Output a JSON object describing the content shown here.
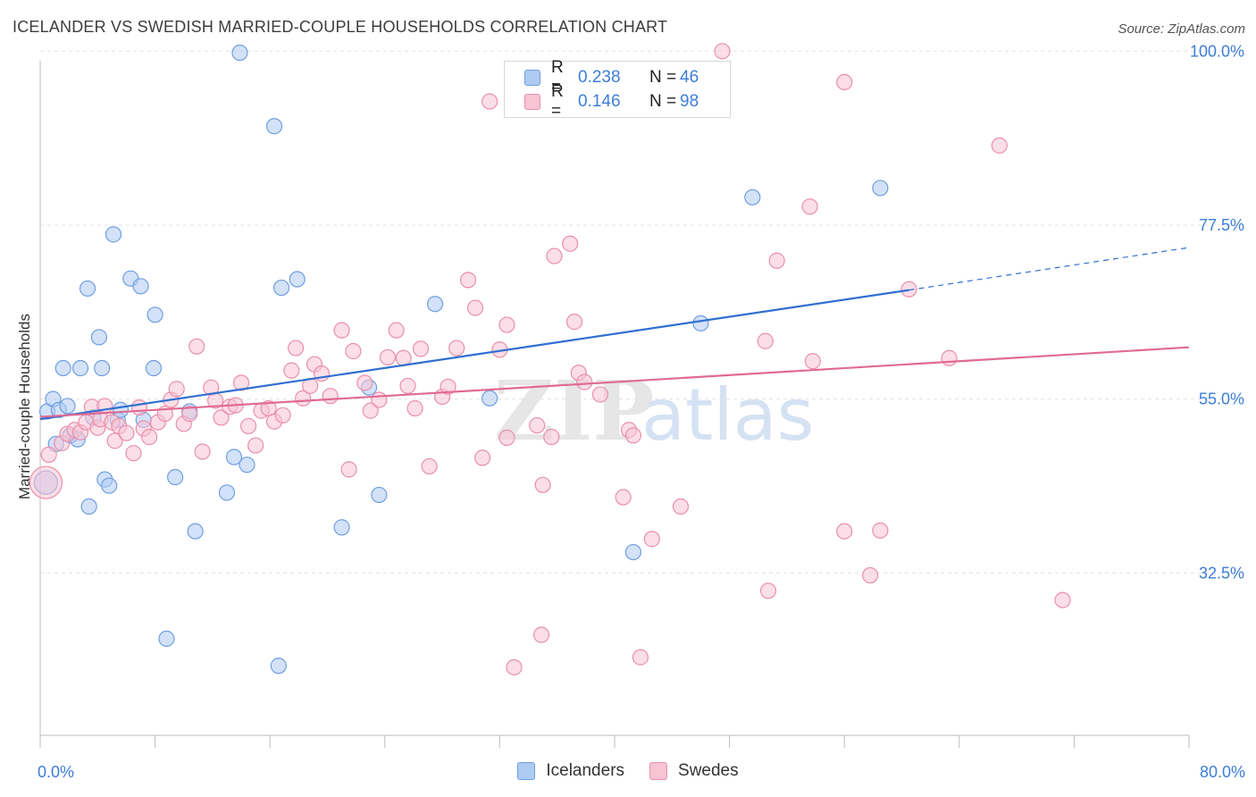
{
  "header": {
    "title": "ICELANDER VS SWEDISH MARRIED-COUPLE HOUSEHOLDS CORRELATION CHART",
    "source": "Source: ZipAtlas.com"
  },
  "watermark": {
    "zip": "ZIP",
    "atlas": "atlas"
  },
  "legend": {
    "r_label": "R =",
    "n_label": "N =",
    "rows": [
      {
        "r": "0.238",
        "n": "46",
        "fill": "#aecbf2",
        "stroke": "#6f9fe0"
      },
      {
        "r": "0.146",
        "n": "98",
        "fill": "#f8c3d3",
        "stroke": "#ea8fab"
      }
    ]
  },
  "bottom_legend": {
    "items": [
      {
        "label": "Icelanders",
        "fill": "#aecbf2",
        "stroke": "#6f9fe0"
      },
      {
        "label": "Swedes",
        "fill": "#f8c3d3",
        "stroke": "#ea8fab"
      }
    ]
  },
  "colors": {
    "icelanders_line": "#2f6fd1",
    "swedes_line": "#e06a93",
    "tick_label": "#3d7dd8",
    "grid": "#e3e3e3"
  },
  "chart_data": {
    "type": "scatter",
    "title": "ICELANDER VS SWEDISH MARRIED-COUPLE HOUSEHOLDS CORRELATION CHART",
    "xlabel": "",
    "ylabel": "Married-couple Households",
    "xlim": [
      0,
      80
    ],
    "ylim": [
      11.5,
      102
    ],
    "x_tick_labels": [
      {
        "value": 0,
        "label": "0.0%"
      },
      {
        "value": 80,
        "label": "80.0%"
      }
    ],
    "y_tick_labels": [
      {
        "value": 100,
        "label": "100.0%"
      },
      {
        "value": 77.5,
        "label": "77.5%"
      },
      {
        "value": 55,
        "label": "55.0%"
      },
      {
        "value": 32.5,
        "label": "32.5%"
      }
    ],
    "grid": true,
    "legend_position": "top-center",
    "series": [
      {
        "name": "Icelanders",
        "r": 0.238,
        "n": 46,
        "trend": {
          "x0": 0,
          "y0": 52.4,
          "x1": 60.5,
          "y1": 69.1,
          "dash_to_x": 80,
          "dash_to_y": 74.6
        },
        "points": [
          [
            0.4,
            44.2
          ],
          [
            0.5,
            53.4
          ],
          [
            0.9,
            55.0
          ],
          [
            1.3,
            53.6
          ],
          [
            1.1,
            49.2
          ],
          [
            1.6,
            59.0
          ],
          [
            1.9,
            54.1
          ],
          [
            2.1,
            50.3
          ],
          [
            2.6,
            49.8
          ],
          [
            2.8,
            59.0
          ],
          [
            3.3,
            69.3
          ],
          [
            3.4,
            41.1
          ],
          [
            3.7,
            52.6
          ],
          [
            4.1,
            63.0
          ],
          [
            4.3,
            59.0
          ],
          [
            4.5,
            44.6
          ],
          [
            4.8,
            43.8
          ],
          [
            5.1,
            76.3
          ],
          [
            5.4,
            52.3
          ],
          [
            5.6,
            53.6
          ],
          [
            6.3,
            70.6
          ],
          [
            7.0,
            69.6
          ],
          [
            7.2,
            52.3
          ],
          [
            7.9,
            59.0
          ],
          [
            8.0,
            65.9
          ],
          [
            8.8,
            24.0
          ],
          [
            9.4,
            44.9
          ],
          [
            10.4,
            53.4
          ],
          [
            10.8,
            37.9
          ],
          [
            13.0,
            42.9
          ],
          [
            13.5,
            47.5
          ],
          [
            13.9,
            99.8
          ],
          [
            14.4,
            46.5
          ],
          [
            16.3,
            90.3
          ],
          [
            16.6,
            20.5
          ],
          [
            16.8,
            69.4
          ],
          [
            17.9,
            70.5
          ],
          [
            21.0,
            38.4
          ],
          [
            22.9,
            56.5
          ],
          [
            23.6,
            42.6
          ],
          [
            27.5,
            67.3
          ],
          [
            31.3,
            55.1
          ],
          [
            41.3,
            35.2
          ],
          [
            46.0,
            64.8
          ],
          [
            49.6,
            81.1
          ],
          [
            58.5,
            82.3
          ]
        ]
      },
      {
        "name": "Swedes",
        "r": 0.146,
        "n": 98,
        "trend": {
          "x0": 0,
          "y0": 52.7,
          "x1": 80,
          "y1": 61.7
        },
        "points": [
          [
            0.4,
            44.2
          ],
          [
            0.6,
            47.8
          ],
          [
            1.5,
            49.3
          ],
          [
            1.9,
            50.5
          ],
          [
            2.4,
            51.0
          ],
          [
            2.8,
            50.7
          ],
          [
            3.2,
            52.0
          ],
          [
            3.6,
            54.0
          ],
          [
            4.0,
            51.3
          ],
          [
            4.2,
            52.4
          ],
          [
            4.5,
            54.1
          ],
          [
            5.0,
            52.0
          ],
          [
            5.2,
            49.6
          ],
          [
            5.5,
            51.5
          ],
          [
            6.0,
            50.6
          ],
          [
            6.5,
            48.0
          ],
          [
            6.9,
            53.9
          ],
          [
            7.2,
            51.2
          ],
          [
            7.6,
            50.1
          ],
          [
            8.2,
            52.0
          ],
          [
            8.7,
            53.1
          ],
          [
            9.1,
            54.9
          ],
          [
            9.5,
            56.3
          ],
          [
            10.0,
            51.8
          ],
          [
            10.4,
            53.1
          ],
          [
            10.9,
            61.8
          ],
          [
            11.3,
            48.2
          ],
          [
            11.9,
            56.5
          ],
          [
            12.2,
            54.8
          ],
          [
            12.6,
            52.6
          ],
          [
            13.2,
            54.0
          ],
          [
            13.6,
            54.2
          ],
          [
            14.0,
            57.1
          ],
          [
            14.5,
            51.5
          ],
          [
            15.0,
            49.0
          ],
          [
            15.4,
            53.5
          ],
          [
            15.9,
            53.8
          ],
          [
            16.3,
            52.1
          ],
          [
            16.9,
            52.9
          ],
          [
            17.5,
            58.7
          ],
          [
            17.8,
            61.6
          ],
          [
            18.3,
            55.1
          ],
          [
            18.8,
            56.7
          ],
          [
            19.1,
            59.5
          ],
          [
            19.6,
            58.3
          ],
          [
            20.2,
            55.4
          ],
          [
            21.0,
            63.9
          ],
          [
            21.5,
            45.9
          ],
          [
            21.8,
            61.2
          ],
          [
            22.6,
            57.1
          ],
          [
            23.0,
            53.5
          ],
          [
            23.6,
            54.9
          ],
          [
            24.2,
            60.4
          ],
          [
            24.8,
            63.9
          ],
          [
            25.3,
            60.3
          ],
          [
            25.6,
            56.7
          ],
          [
            26.1,
            53.8
          ],
          [
            26.5,
            61.5
          ],
          [
            27.1,
            46.3
          ],
          [
            28.0,
            55.3
          ],
          [
            28.4,
            56.6
          ],
          [
            29.0,
            61.6
          ],
          [
            29.8,
            70.4
          ],
          [
            30.3,
            66.8
          ],
          [
            30.8,
            47.4
          ],
          [
            31.3,
            93.5
          ],
          [
            32.0,
            61.4
          ],
          [
            32.5,
            50.0
          ],
          [
            32.5,
            64.6
          ],
          [
            33.0,
            20.3
          ],
          [
            34.6,
            51.6
          ],
          [
            34.9,
            24.5
          ],
          [
            35.0,
            43.9
          ],
          [
            35.6,
            50.1
          ],
          [
            35.8,
            73.5
          ],
          [
            36.9,
            75.1
          ],
          [
            37.2,
            65.0
          ],
          [
            37.5,
            58.4
          ],
          [
            37.9,
            57.2
          ],
          [
            39.0,
            55.6
          ],
          [
            40.6,
            42.3
          ],
          [
            41.0,
            51.0
          ],
          [
            41.3,
            50.3
          ],
          [
            41.8,
            21.6
          ],
          [
            42.6,
            36.9
          ],
          [
            44.6,
            41.1
          ],
          [
            47.5,
            100.0
          ],
          [
            50.5,
            62.5
          ],
          [
            50.7,
            30.2
          ],
          [
            51.3,
            72.9
          ],
          [
            53.6,
            79.9
          ],
          [
            53.8,
            59.9
          ],
          [
            56.0,
            96.0
          ],
          [
            56.0,
            37.9
          ],
          [
            57.8,
            32.2
          ],
          [
            58.5,
            38.0
          ],
          [
            60.5,
            69.2
          ],
          [
            63.3,
            60.3
          ],
          [
            66.8,
            87.8
          ],
          [
            71.2,
            29.0
          ]
        ]
      }
    ]
  }
}
